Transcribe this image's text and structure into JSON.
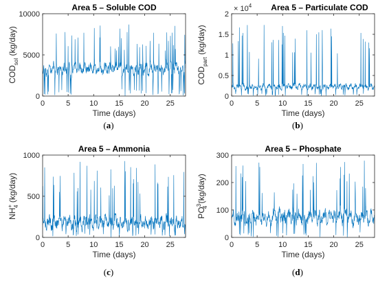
{
  "colors": {
    "line": "#0072BD",
    "axis": "#262626"
  },
  "chart_data": [
    {
      "type": "line",
      "title": "Area 5 – Soluble COD",
      "xlabel": "Time (days)",
      "ylabel_main": "COD",
      "ylabel_sub": "sol",
      "ylabel_rest": " (kg/day)",
      "xlim": [
        0,
        28
      ],
      "ylim": [
        0,
        10000
      ],
      "xticks": [
        0,
        5,
        10,
        15,
        20,
        25
      ],
      "yticks": [
        0,
        5000,
        10000
      ],
      "multiplier": "",
      "panel_label": "a",
      "series_profile": {
        "base": 3300,
        "noise": 900,
        "peak_min": 5500,
        "peak_max": 8700,
        "seed": 11
      }
    },
    {
      "type": "line",
      "title": "Area 5 – Particulate COD",
      "xlabel": "Time (days)",
      "ylabel_main": "COD",
      "ylabel_sub": "part",
      "ylabel_rest": " (kg/day)",
      "xlim": [
        0,
        28
      ],
      "ylim": [
        0,
        20000
      ],
      "xticks": [
        0,
        5,
        10,
        15,
        20,
        25
      ],
      "yticks": [
        0,
        5000,
        10000,
        15000,
        20000
      ],
      "ytick_labels": [
        "0",
        "0.5",
        "1",
        "1.5",
        "2"
      ],
      "multiplier": "× 10",
      "multiplier_exp": "4",
      "panel_label": "b",
      "series_profile": {
        "base": 2300,
        "noise": 900,
        "peak_min": 9000,
        "peak_max": 18000,
        "seed": 23
      }
    },
    {
      "type": "line",
      "title": "Area 5 – Ammonia",
      "xlabel": "Time (days)",
      "ylabel_main": "NH",
      "ylabel_sub": "4",
      "ylabel_sup": "+",
      "ylabel_rest": " (kg/day)",
      "xlim": [
        0,
        28
      ],
      "ylim": [
        0,
        1000
      ],
      "xticks": [
        0,
        5,
        10,
        15,
        20,
        25
      ],
      "yticks": [
        0,
        500,
        1000
      ],
      "multiplier": "",
      "panel_label": "c",
      "series_profile": {
        "base": 180,
        "noise": 110,
        "peak_min": 500,
        "peak_max": 930,
        "seed": 37
      }
    },
    {
      "type": "line",
      "title": "Area 5 – Phosphate",
      "xlabel": "Time (days)",
      "ylabel_main": "PO",
      "ylabel_sub": "4",
      "ylabel_sup": "3-",
      "ylabel_rest": " (kg/day)",
      "xlim": [
        0,
        28
      ],
      "ylim": [
        0,
        300
      ],
      "xticks": [
        0,
        5,
        10,
        15,
        20,
        25
      ],
      "yticks": [
        0,
        100,
        200,
        300
      ],
      "multiplier": "",
      "panel_label": "d",
      "series_profile": {
        "base": 75,
        "noise": 35,
        "peak_min": 150,
        "peak_max": 280,
        "seed": 51
      }
    }
  ]
}
